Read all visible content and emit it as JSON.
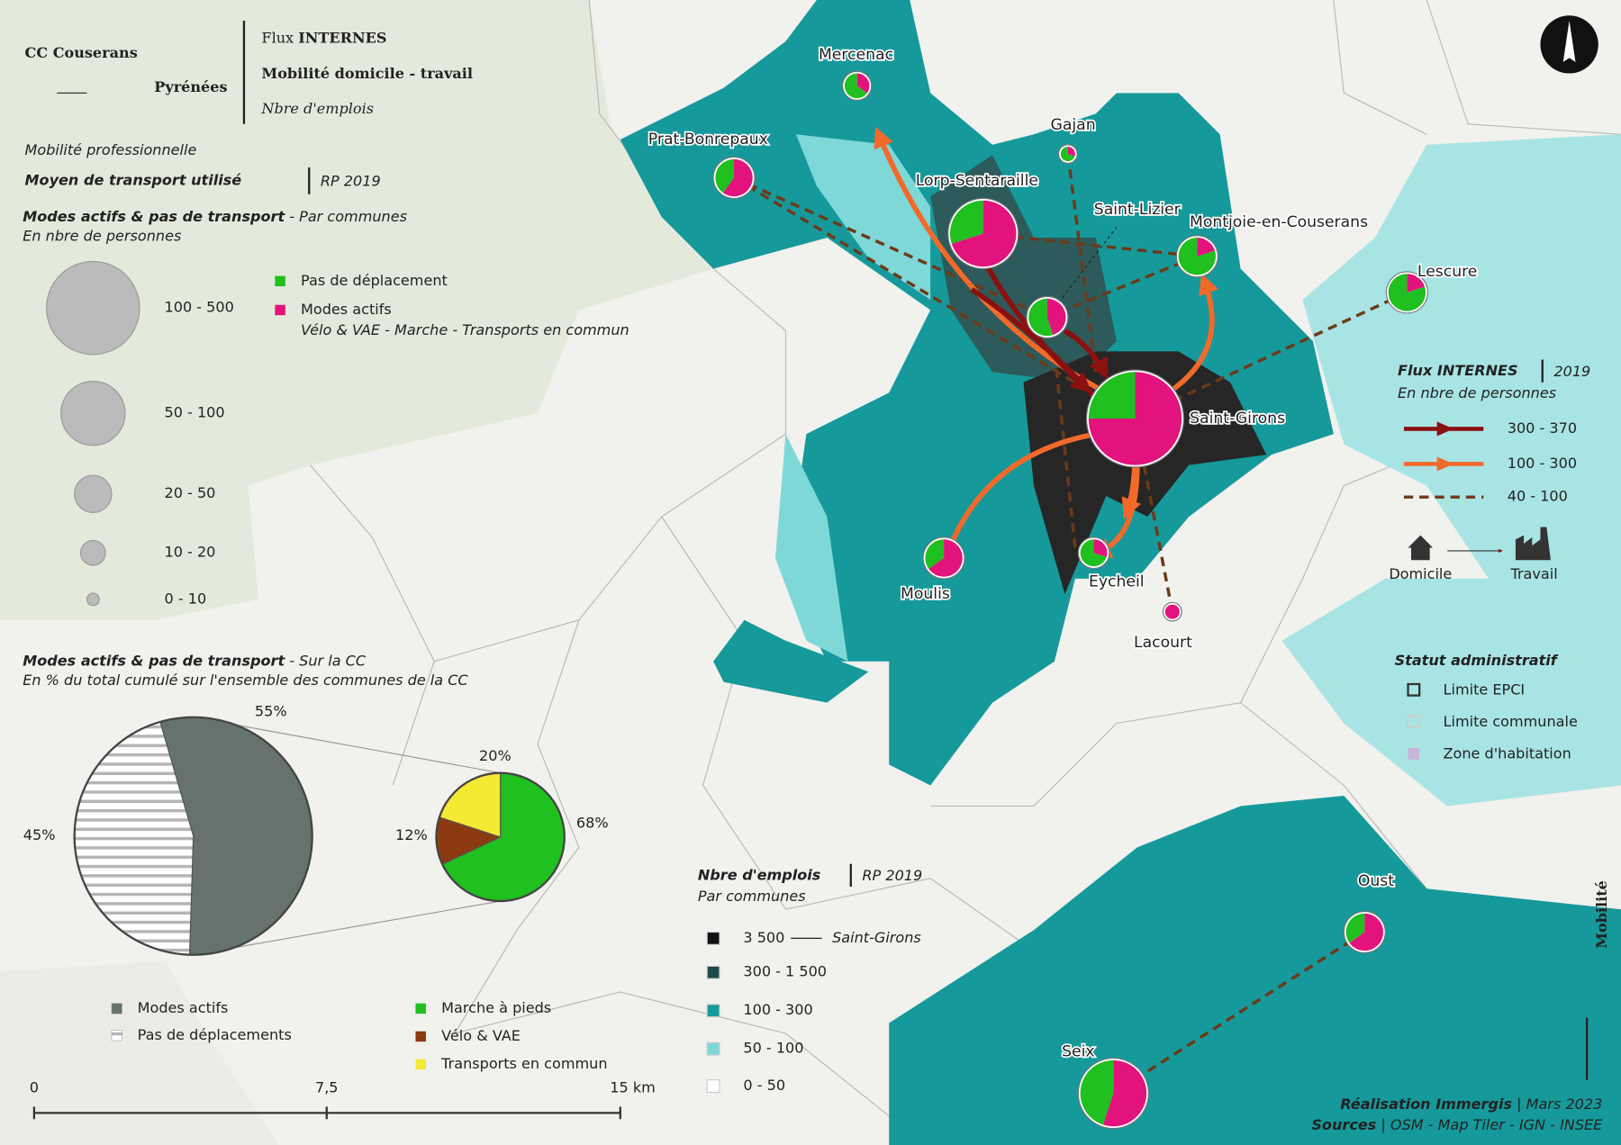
{
  "header": {
    "org_line1": "CC Couserans",
    "org_line2": "Pyrénées",
    "title_light": "Flux",
    "title_bold": "INTERNES",
    "subtitle": "Mobilité domicile - travail",
    "note": "Nbre d'emplois"
  },
  "left_panel": {
    "kicker": "Mobilité professionnelle",
    "heading": "Moyen de transport utilisé",
    "heading_source": "RP 2019",
    "size_legend": {
      "title": "Modes actifs & pas de transport",
      "title_suffix": "- Par communes",
      "unit": "En nbre de personnes",
      "classes": [
        "100 - 500",
        "50 - 100",
        "20 - 50",
        "10 - 20",
        "0 - 10"
      ]
    },
    "color_legend": [
      {
        "label": "Pas de déplacement",
        "color": "#1fc01f"
      },
      {
        "label": "Modes actifs",
        "color": "#e2137c"
      }
    ],
    "modes_note": "Vélo & VAE - Marche - Transports en commun"
  },
  "cc_share": {
    "title": "Modes actifs & pas de transport",
    "title_suffix": "- Sur la CC",
    "unit": "En % du total cumulé sur l'ensemble des communes de la CC",
    "main_pie": {
      "categories": [
        "Modes actifs",
        "Pas de déplacements"
      ],
      "values": [
        55,
        45
      ],
      "value_labels": [
        "55%",
        "45%"
      ],
      "colors": [
        "#66736d",
        "striped"
      ]
    },
    "detail_pie": {
      "categories": [
        "Marche à pieds",
        "Vélo & VAE",
        "Transports en commun"
      ],
      "values": [
        68,
        12,
        20
      ],
      "value_labels": [
        "68%",
        "12%",
        "20%"
      ],
      "colors": [
        "#1fc01f",
        "#8b3a12",
        "#f5e934"
      ]
    }
  },
  "scale_bar": {
    "labels": [
      "0",
      "7,5",
      "15 km"
    ]
  },
  "employment_legend": {
    "title": "Nbre d'emplois",
    "source": "RP 2019",
    "unit": "Par communes",
    "reference": "Saint-Girons",
    "classes": [
      {
        "label": "3 500",
        "color": "#111111"
      },
      {
        "label": "300 - 1 500",
        "color": "#1f4a4a"
      },
      {
        "label": "100 - 300",
        "color": "#16999b"
      },
      {
        "label": "50 - 100",
        "color": "#7fd8d8"
      },
      {
        "label": "0 - 50",
        "color": "#ffffff"
      }
    ]
  },
  "flux_legend": {
    "title": "Flux INTERNES",
    "source": "2019",
    "unit": "En nbre de personnes",
    "from": "Domicile",
    "to": "Travail",
    "classes": [
      {
        "label": "300 - 370",
        "color": "#8b1010",
        "style": "solid"
      },
      {
        "label": "100 - 300",
        "color": "#f26a2a",
        "style": "solid"
      },
      {
        "label": "40 - 100",
        "color": "#6b3a1a",
        "style": "dashed"
      }
    ]
  },
  "status_legend": {
    "title": "Statut administratif",
    "items": [
      "Limite EPCI",
      "Limite communale",
      "Zone d'habitation"
    ]
  },
  "communes": [
    {
      "name": "Mercenac",
      "active_pct": 35
    },
    {
      "name": "Prat-Bonrepaux",
      "active_pct": 60
    },
    {
      "name": "Gajan",
      "active_pct": 30
    },
    {
      "name": "Lorp-Sentaraille",
      "active_pct": 70
    },
    {
      "name": "Saint-Lizier",
      "active_pct": 45
    },
    {
      "name": "Montjoie-en-Couserans",
      "active_pct": 20
    },
    {
      "name": "Lescure",
      "active_pct": 20
    },
    {
      "name": "Saint-Girons",
      "active_pct": 75
    },
    {
      "name": "Moulis",
      "active_pct": 65
    },
    {
      "name": "Eycheil",
      "active_pct": 30
    },
    {
      "name": "Lacourt",
      "active_pct": 100
    },
    {
      "name": "Oust",
      "active_pct": 65
    },
    {
      "name": "Seix",
      "active_pct": 55
    }
  ],
  "side_title": "Mobilité",
  "credits": {
    "made_by": "Réalisation Immergis",
    "date": "Mars 2023",
    "sources_label": "Sources",
    "sources": "OSM - Map Tiler - IGN - INSEE"
  }
}
